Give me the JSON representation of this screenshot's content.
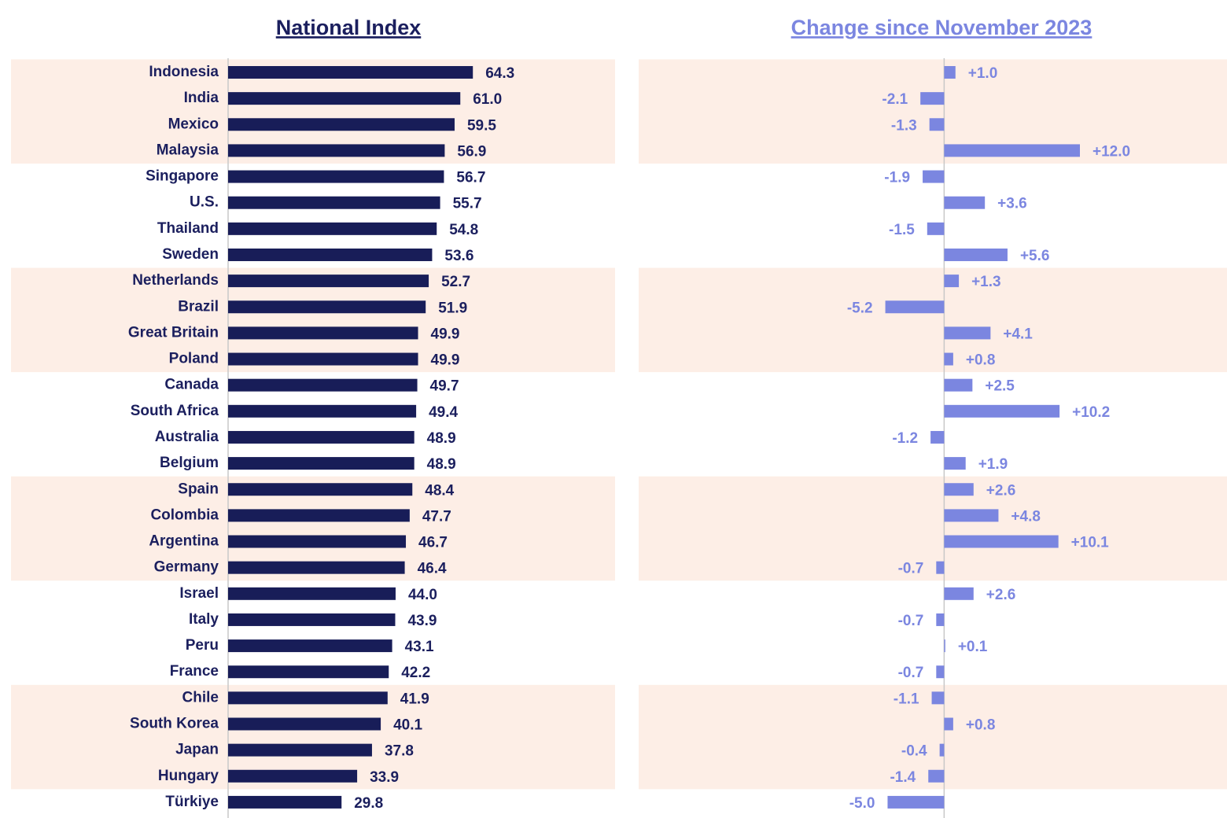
{
  "chart_data": [
    {
      "type": "bar",
      "title": "National Index",
      "categories": [
        "Indonesia",
        "India",
        "Mexico",
        "Malaysia",
        "Singapore",
        "U.S.",
        "Thailand",
        "Sweden",
        "Netherlands",
        "Brazil",
        "Great Britain",
        "Poland",
        "Canada",
        "South Africa",
        "Australia",
        "Belgium",
        "Spain",
        "Colombia",
        "Argentina",
        "Germany",
        "Israel",
        "Italy",
        "Peru",
        "France",
        "Chile",
        "South Korea",
        "Japan",
        "Hungary",
        "Türkiye"
      ],
      "values": [
        64.3,
        61.0,
        59.5,
        56.9,
        56.7,
        55.7,
        54.8,
        53.6,
        52.7,
        51.9,
        49.9,
        49.9,
        49.7,
        49.4,
        48.9,
        48.9,
        48.4,
        47.7,
        46.7,
        46.4,
        44.0,
        43.9,
        43.1,
        42.2,
        41.9,
        40.1,
        37.8,
        33.9,
        29.8
      ],
      "value_labels": [
        "64.3",
        "61.0",
        "59.5",
        "56.9",
        "56.7",
        "55.7",
        "54.8",
        "53.6",
        "52.7",
        "51.9",
        "49.9",
        "49.9",
        "49.7",
        "49.4",
        "48.9",
        "48.9",
        "48.4",
        "47.7",
        "46.7",
        "46.4",
        "44.0",
        "43.9",
        "43.1",
        "42.2",
        "41.9",
        "40.1",
        "37.8",
        "33.9",
        "29.8"
      ],
      "color": "#181d58",
      "xlim": [
        0,
        100
      ]
    },
    {
      "type": "bar",
      "title": "Change since November 2023",
      "values": [
        1.0,
        -2.1,
        -1.3,
        12.0,
        -1.9,
        3.6,
        -1.5,
        5.6,
        1.3,
        -5.2,
        4.1,
        0.8,
        2.5,
        10.2,
        -1.2,
        1.9,
        2.6,
        4.8,
        10.1,
        -0.7,
        2.6,
        -0.7,
        0.1,
        -0.7,
        -1.1,
        0.8,
        -0.4,
        -1.4,
        -5.0
      ],
      "value_labels": [
        "+1.0",
        "-2.1",
        "-1.3",
        "+12.0",
        "-1.9",
        "+3.6",
        "-1.5",
        "+5.6",
        "+1.3",
        "-5.2",
        "+4.1",
        "+0.8",
        "+2.5",
        "+10.2",
        "-1.2",
        "+1.9",
        "+2.6",
        "+4.8",
        "+10.1",
        "-0.7",
        "+2.6",
        "-0.7",
        "+0.1",
        "-0.7",
        "-1.1",
        "+0.8",
        "-0.4",
        "-1.4",
        "-5.0"
      ],
      "color": "#7b86e0",
      "xlim": [
        -27,
        25
      ]
    }
  ]
}
